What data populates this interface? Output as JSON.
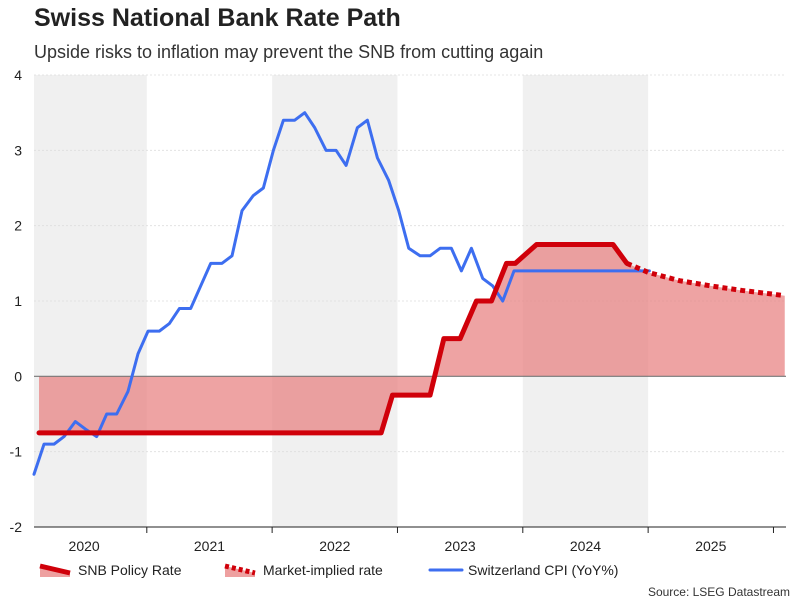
{
  "chart_data": {
    "type": "line",
    "title": "Swiss National Bank Rate Path",
    "subtitle": "Upside risks to inflation may prevent the SNB from cutting again",
    "source": "Source: LSEG Datastream",
    "ylim": [
      -2,
      4
    ],
    "yticks": [
      "4",
      "3",
      "2",
      "1",
      "0",
      "-1",
      "-2"
    ],
    "ytick_values": [
      4,
      3,
      2,
      1,
      0,
      -1,
      -2
    ],
    "xlim": [
      2019.6,
      2025.6
    ],
    "year_labels": [
      {
        "label": "2020",
        "x": 2020.0
      },
      {
        "label": "2021",
        "x": 2021.0
      },
      {
        "label": "2022",
        "x": 2022.0
      },
      {
        "label": "2023",
        "x": 2023.0
      },
      {
        "label": "2024",
        "x": 2024.0
      },
      {
        "label": "2025",
        "x": 2025.0
      }
    ],
    "shaded_bands": [
      [
        2019.6,
        2020.5
      ],
      [
        2021.5,
        2022.5
      ],
      [
        2023.5,
        2024.5
      ]
    ],
    "legend": [
      {
        "key": "snb",
        "label": "SNB Policy Rate"
      },
      {
        "key": "market",
        "label": "Market-implied rate"
      },
      {
        "key": "cpi",
        "label": "Switzerland CPI (YoY%)"
      }
    ],
    "colors": {
      "snb": "#d0000a",
      "market": "#d0000a",
      "fill": "#e88080",
      "cpi": "#3d6ef0",
      "band": "#f0f0f0",
      "zero": "#777777"
    },
    "series": [
      {
        "name": "SNB Policy Rate",
        "x": [
          2019.64,
          2022.37,
          2022.46,
          2022.76,
          2022.87,
          2023.0,
          2023.13,
          2023.25,
          2023.37,
          2023.44,
          2023.61,
          2023.76,
          2024.0,
          2024.07,
          2024.22,
          2024.33
        ],
        "y": [
          -0.75,
          -0.75,
          -0.25,
          -0.25,
          0.5,
          0.5,
          1.0,
          1.0,
          1.5,
          1.5,
          1.75,
          1.75,
          1.75,
          1.75,
          1.75,
          1.5
        ]
      },
      {
        "name": "Market-implied rate",
        "x": [
          2024.33,
          2024.5,
          2024.75,
          2025.0,
          2025.25,
          2025.5,
          2025.59
        ],
        "y": [
          1.5,
          1.38,
          1.27,
          1.2,
          1.14,
          1.09,
          1.07
        ]
      },
      {
        "name": "Switzerland CPI (YoY%)",
        "x": [
          2019.6,
          2019.68,
          2019.76,
          2019.84,
          2019.93,
          2020.01,
          2020.1,
          2020.18,
          2020.26,
          2020.35,
          2020.43,
          2020.51,
          2020.6,
          2020.68,
          2020.76,
          2020.85,
          2020.93,
          2021.01,
          2021.1,
          2021.18,
          2021.26,
          2021.35,
          2021.43,
          2021.51,
          2021.59,
          2021.68,
          2021.76,
          2021.84,
          2021.93,
          2022.01,
          2022.09,
          2022.18,
          2022.26,
          2022.34,
          2022.43,
          2022.51,
          2022.59,
          2022.68,
          2022.76,
          2022.84,
          2022.93,
          2023.01,
          2023.09,
          2023.18,
          2023.26,
          2023.34,
          2023.43,
          2023.51,
          2023.59,
          2023.68,
          2023.76,
          2023.84,
          2023.93,
          2024.01,
          2024.09,
          2024.18,
          2024.26,
          2024.34,
          2024.43,
          2024.51
        ],
        "y": [
          -1.3,
          -0.9,
          -0.9,
          -0.8,
          -0.6,
          -0.7,
          -0.8,
          -0.5,
          -0.5,
          -0.2,
          0.3,
          0.6,
          0.6,
          0.7,
          0.9,
          0.9,
          1.2,
          1.5,
          1.5,
          1.6,
          2.2,
          2.4,
          2.5,
          3.0,
          3.4,
          3.4,
          3.5,
          3.3,
          3.0,
          3.0,
          2.8,
          3.3,
          3.4,
          2.9,
          2.6,
          2.2,
          1.7,
          1.6,
          1.6,
          1.7,
          1.7,
          1.4,
          1.7,
          1.3,
          1.2,
          1.0,
          1.4,
          1.4,
          1.4,
          1.4,
          1.4,
          1.4,
          1.4,
          1.4,
          1.4,
          1.4,
          1.4,
          1.4,
          1.4,
          1.4
        ]
      }
    ]
  }
}
